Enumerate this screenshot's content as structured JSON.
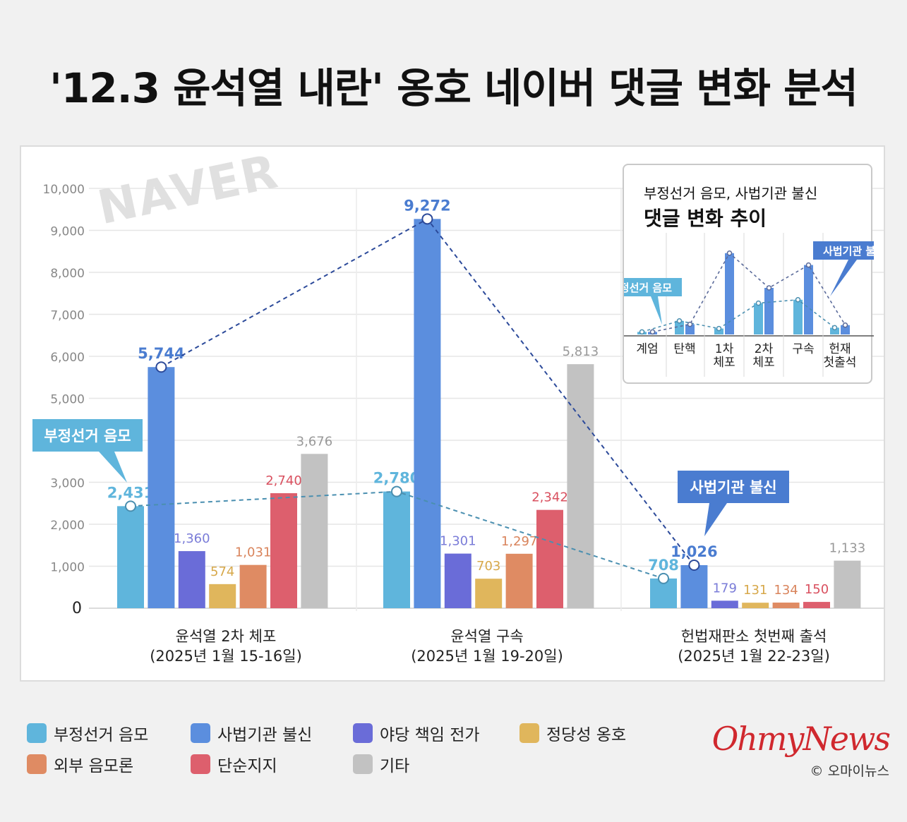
{
  "title": "'12.3 윤석열 내란' 옹호 네이버 댓글 변화 분석",
  "watermark": "NAVER",
  "chart_data": [
    {
      "type": "bar",
      "categories": [
        {
          "name": "윤석열 2차 체포",
          "date": "(2025년 1월 15-16일)"
        },
        {
          "name": "윤석열 구속",
          "date": "(2025년 1월 19-20일)"
        },
        {
          "name": "헌법재판소 첫번째 출석",
          "date": "(2025년 1월 22-23일)"
        }
      ],
      "series": [
        {
          "name": "부정선거 음모",
          "color": "#5fb5dc",
          "values": [
            2431,
            2780,
            708
          ],
          "labels": [
            "2,431",
            "2,780",
            "708"
          ],
          "label_color": "#5fb5dc"
        },
        {
          "name": "사법기관 불신",
          "color": "#5b8ede",
          "values": [
            5744,
            9272,
            1026
          ],
          "labels": [
            "5,744",
            "9,272",
            "1,026"
          ],
          "label_color": "#4a7cd0"
        },
        {
          "name": "야당 책임 전가",
          "color": "#6a6cd8",
          "values": [
            1360,
            1301,
            179
          ],
          "labels": [
            "1,360",
            "1,301",
            "179"
          ],
          "label_color": "#7a7cd8"
        },
        {
          "name": "정당성 옹호",
          "color": "#e0b65c",
          "values": [
            574,
            703,
            131
          ],
          "labels": [
            "574",
            "703",
            "131"
          ],
          "label_color": "#d7a84a"
        },
        {
          "name": "외부 음모론",
          "color": "#df8b63",
          "values": [
            1031,
            1297,
            134
          ],
          "labels": [
            "1,031",
            "1,297",
            "134"
          ],
          "label_color": "#d9845c"
        },
        {
          "name": "단순지지",
          "color": "#dd5f6d",
          "values": [
            2740,
            2342,
            150
          ],
          "labels": [
            "2,740",
            "2,342",
            "150"
          ],
          "label_color": "#d9505f"
        },
        {
          "name": "기타",
          "color": "#c2c2c2",
          "values": [
            3676,
            5813,
            1133
          ],
          "labels": [
            "3,676",
            "5,813",
            "1,133"
          ],
          "label_color": "#999999"
        }
      ],
      "ylim": [
        0,
        10000
      ],
      "yticks": [
        "0",
        "1,000",
        "2,000",
        "3,000",
        "4,000",
        "5,000",
        "6,000",
        "7,000",
        "8,000",
        "9,000",
        "10,000"
      ],
      "grid": true,
      "trend_lines": [
        "부정선거 음모",
        "사법기관 불신"
      ],
      "callouts": [
        {
          "text": "부정선거 음모",
          "series": "부정선거 음모",
          "color": "#5fb5dc"
        },
        {
          "text": "사법기관 불신",
          "series": "사법기관 불신",
          "color": "#4a7cd0"
        }
      ]
    },
    {
      "type": "bar",
      "title_line1": "부정선거 음모, 사법기관 불신",
      "title_line2": "댓글 변화 추이",
      "categories": [
        "계엄",
        "탄핵",
        "1차\n체포",
        "2차\n체포",
        "구속",
        "헌재\n첫출석"
      ],
      "series": [
        {
          "name": "부정선거 음모",
          "color": "#5fb5dc",
          "values": [
            0.3,
            1.6,
            0.7,
            3.7,
            4.1,
            0.8
          ]
        },
        {
          "name": "사법기관 불신",
          "color": "#5b8ede",
          "values": [
            0.3,
            1.2,
            9.6,
            5.5,
            8.2,
            1.1
          ]
        }
      ],
      "callouts": [
        {
          "text": "부정선거 음모",
          "color": "#5fb5dc"
        },
        {
          "text": "사법기관 불신",
          "color": "#4a7cd0"
        }
      ]
    }
  ],
  "legend": [
    {
      "label": "부정선거 음모",
      "color": "#5fb5dc"
    },
    {
      "label": "사법기관 불신",
      "color": "#5b8ede"
    },
    {
      "label": "야당 책임 전가",
      "color": "#6a6cd8"
    },
    {
      "label": "정당성 옹호",
      "color": "#e0b65c"
    },
    {
      "label": "외부 음모론",
      "color": "#df8b63"
    },
    {
      "label": "단순지지",
      "color": "#dd5f6d"
    },
    {
      "label": "기타",
      "color": "#c2c2c2"
    }
  ],
  "brand": {
    "logo": "OhmyNews",
    "copyright": "© 오마이뉴스"
  }
}
